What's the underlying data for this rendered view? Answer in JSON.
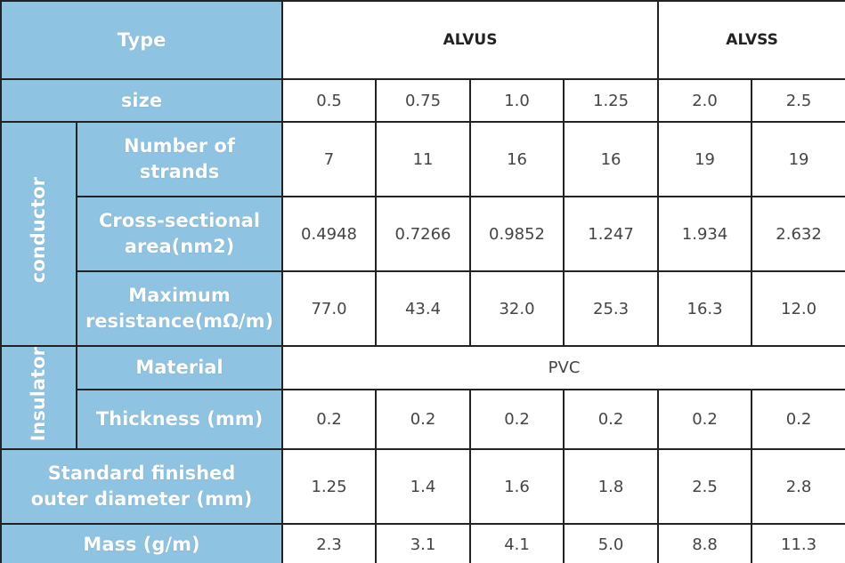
{
  "table": {
    "type_label": "Type",
    "types": [
      "ALVUS",
      "ALVSS"
    ],
    "size_label": "size",
    "sizes": [
      "0.5",
      "0.75",
      "1.0",
      "1.25",
      "2.0",
      "2.5"
    ],
    "conductor": {
      "label": "conductor",
      "rows": [
        {
          "label": "Number of\nstrands",
          "values": [
            "7",
            "11",
            "16",
            "16",
            "19",
            "19"
          ]
        },
        {
          "label": "Cross-sectional\narea(nm2)",
          "values": [
            "0.4948",
            "0.7266",
            "0.9852",
            "1.247",
            "1.934",
            "2.632"
          ]
        },
        {
          "label": "Maximum\nresistance(mΩ/m)",
          "values": [
            "77.0",
            "43.4",
            "32.0",
            "25.3",
            "16.3",
            "12.0"
          ]
        }
      ]
    },
    "insulator": {
      "label": "Insulator",
      "material": {
        "label": "Material",
        "value": "PVC"
      },
      "thickness": {
        "label": "Thickness (mm)",
        "values": [
          "0.2",
          "0.2",
          "0.2",
          "0.2",
          "0.2",
          "0.2"
        ]
      }
    },
    "diameter": {
      "label": "Standard finished\nouter diameter (mm)",
      "values": [
        "1.25",
        "1.4",
        "1.6",
        "1.8",
        "2.5",
        "2.8"
      ]
    },
    "mass": {
      "label": "Mass (g/m)",
      "values": [
        "2.3",
        "3.1",
        "4.1",
        "5.0",
        "8.8",
        "11.3"
      ]
    }
  }
}
